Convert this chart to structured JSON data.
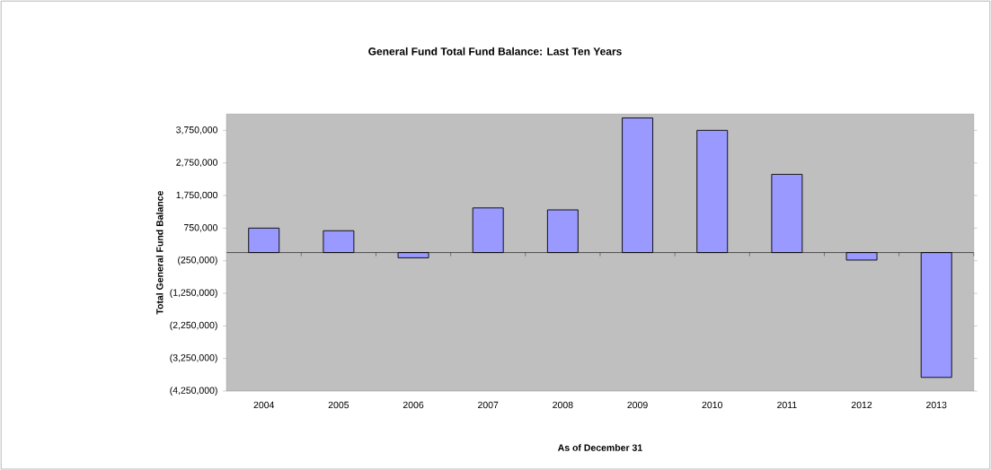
{
  "chart_data": {
    "type": "bar",
    "title": "General Fund Total Fund Balance: Last Ten Years",
    "xlabel": "As of December 31",
    "ylabel": "Total General Fund Balance",
    "categories": [
      "2004",
      "2005",
      "2006",
      "2007",
      "2008",
      "2009",
      "2010",
      "2011",
      "2012",
      "2013"
    ],
    "values": [
      750000,
      670000,
      -160000,
      1370000,
      1310000,
      4130000,
      3750000,
      2400000,
      -230000,
      -3830000
    ],
    "color": "#9999ff",
    "ylim": [
      -4250000,
      4250000
    ],
    "yticks": [
      {
        "value": -4250000,
        "label": "(4,250,000)"
      },
      {
        "value": -3250000,
        "label": "(3,250,000)"
      },
      {
        "value": -2250000,
        "label": "(2,250,000)"
      },
      {
        "value": -1250000,
        "label": "(1,250,000)"
      },
      {
        "value": -250000,
        "label": "(250,000)"
      },
      {
        "value": 750000,
        "label": "750,000"
      },
      {
        "value": 1750000,
        "label": "1,750,000"
      },
      {
        "value": 2750000,
        "label": "2,750,000"
      },
      {
        "value": 3750000,
        "label": "3,750,000"
      }
    ]
  }
}
